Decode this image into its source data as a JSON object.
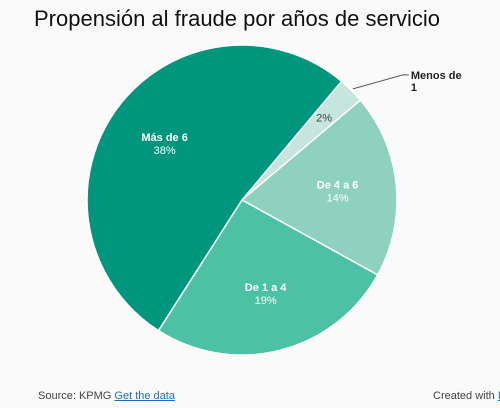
{
  "chart_data": {
    "type": "pie",
    "title": "Propensión al fraude por años de servicio",
    "slices": [
      {
        "name": "Menos de 1",
        "value": 2,
        "label": "2%",
        "color": "#c5e5dd"
      },
      {
        "name": "De 4 a 6",
        "value": 14,
        "label": "14%",
        "color": "#8ed1bf"
      },
      {
        "name": "De 1 a 4",
        "value": 19,
        "label": "19%",
        "color": "#4cc1a6"
      },
      {
        "name": "Más de 6",
        "value": 38,
        "label": "38%",
        "color": "#00967d"
      }
    ]
  },
  "footer": {
    "source_prefix": "Source: KPMG",
    "get_data": "Get the data",
    "created_with": "Created with",
    "created_link": "I"
  }
}
